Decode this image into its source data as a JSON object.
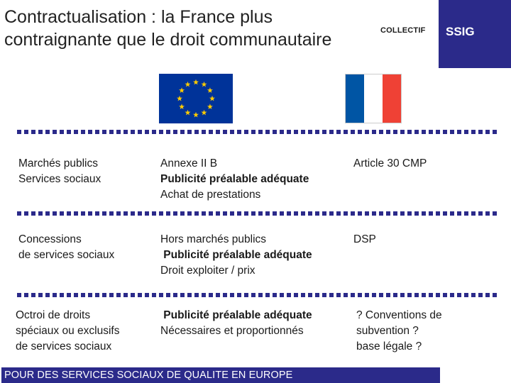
{
  "header": {
    "title_line1": "Contractualisation : la France plus",
    "title_line2": "contraignante que le droit communautaire",
    "collectif": "COLLECTIF",
    "ssig": "SSIG"
  },
  "colors": {
    "brand_blue": "#2b2a8a",
    "eu_blue": "#003399",
    "eu_star": "#ffcc00",
    "fr_blue": "#0055a4",
    "fr_red": "#ef4135"
  },
  "rows": [
    {
      "col1": [
        "Marchés publics",
        "Services sociaux"
      ],
      "col2": [
        {
          "text": "Annexe II B",
          "bold": false
        },
        {
          "text": "Publicité préalable adéquate",
          "bold": true
        },
        {
          "text": "Achat de prestations",
          "bold": false
        }
      ],
      "col3": [
        "Article 30 CMP"
      ]
    },
    {
      "col1": [
        "Concessions",
        "de services sociaux"
      ],
      "col2": [
        {
          "text": "Hors marchés  publics",
          "bold": false
        },
        {
          "text": " Publicité préalable adéquate",
          "bold": true
        },
        {
          "text": "Droit exploiter / prix",
          "bold": false
        }
      ],
      "col3": [
        "DSP"
      ]
    },
    {
      "col1": [
        "Octroi de droits",
        "spéciaux ou exclusifs",
        "de services sociaux"
      ],
      "col2": [
        {
          "text": " Publicité préalable adéquate",
          "bold": true
        },
        {
          "text": "Nécessaires et proportionnés",
          "bold": false
        }
      ],
      "col3": [
        "? Conventions de",
        "subvention ?",
        "base légale ?"
      ]
    }
  ],
  "footer": {
    "text": "POUR DES SERVICES SOCIAUX DE QUALITE EN EUROPE"
  }
}
